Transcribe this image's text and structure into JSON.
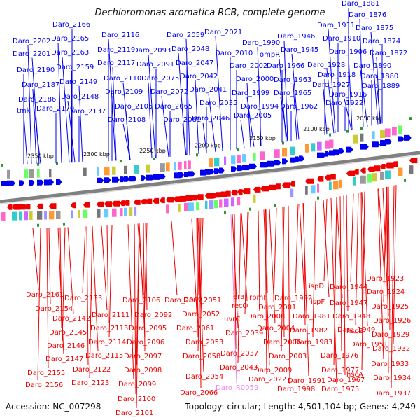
{
  "title": "Dechloromonas aromatica RCB, complete genome",
  "footer": {
    "accession": "Accession: NC_007298",
    "summary": "Topology: circular; Length: 4,501,104 bp; Genes: 4,249"
  },
  "colors": {
    "forward": "#0000ee",
    "reverse": "#ee0000",
    "rna": "#ee88ee",
    "backbone": "#888888",
    "marker": "#2a9a2a"
  },
  "ticks": [
    "2350 kbp",
    "2300 kbp",
    "2250 kbp",
    "2200 kbp",
    "2150 kbp",
    "2100 kbp",
    "2050 kbp"
  ],
  "top_labels": [
    "Daro_1881",
    "Daro_1876",
    "Daro_1875",
    "Daro_1874",
    "Daro_1872",
    "Daro_1911",
    "Daro_1910",
    "Daro_1906",
    "Daro_1890",
    "Daro_1880",
    "Daro_1889",
    "Daro_1928",
    "Daro_1918",
    "Daro_1927",
    "Daro_1916",
    "Daro_1922",
    "Daro_1946",
    "Daro_1945",
    "Daro_1966",
    "Daro_1963",
    "Daro_1965",
    "Daro_1962",
    "Daro_1990",
    "ompR",
    "Daro_2002",
    "Daro_2000",
    "Daro_1999",
    "Daro_1994",
    "Daro_2005",
    "Daro_2021",
    "Daro_2010",
    "Daro_2059",
    "Daro_2048",
    "Daro_2047",
    "Daro_2042",
    "Daro_2041",
    "Daro_2035",
    "Daro_2046",
    "Daro_2093",
    "Daro_2091",
    "Daro_2075",
    "Daro_2072",
    "Daro_2065",
    "Daro_2081",
    "Daro_2116",
    "Daro_2119",
    "Daro_2117",
    "Daro_2110",
    "Daro_2109",
    "Daro_2105",
    "Daro_2108",
    "Daro_2166",
    "Daro_2165",
    "Daro_2163",
    "Daro_2159",
    "Daro_2149",
    "Daro_2148",
    "Daro_2137",
    "Daro_2202",
    "Daro_2201",
    "Daro_2190",
    "Daro_2187",
    "Daro_2186",
    "Daro_2170",
    "tmk"
  ],
  "bottom_labels": [
    "Daro_2161",
    "Daro_2154",
    "Daro_2133",
    "Daro_2142",
    "Daro_2145",
    "Daro_2146",
    "Daro_2147",
    "Daro_2155",
    "Daro_2156",
    "Daro_2111",
    "Daro_2113",
    "Daro_2114",
    "Daro_2115",
    "Daro_2122",
    "Daro_2123",
    "Daro_2106",
    "Daro_2092",
    "Daro_2095",
    "Daro_2096",
    "Daro_2097",
    "Daro_2098",
    "Daro_2099",
    "Daro_2100",
    "Daro_2101",
    "Daro_2082",
    "Daro_2051",
    "Daro_2052",
    "Daro_2061",
    "Daro_2053",
    "Daro_2058",
    "Daro_2054",
    "Daro_2066",
    "era",
    "recO",
    "rpmF",
    "uvrC",
    "Daro_2039",
    "Daro_2037",
    "Daro_2043",
    "Daro_R0059",
    "Daro_2008",
    "Daro_2001",
    "Daro_2004",
    "Daro_2006",
    "Daro_2003",
    "Daro_2009",
    "Daro_2022",
    "Daro_1992",
    "Daro_1981",
    "Daro_1982",
    "Daro_1983",
    "Daro_1991",
    "Daro_1998",
    "ispD",
    "ispF",
    "Daro_1976",
    "Daro_1977",
    "Daro_1975",
    "Daro_1967",
    "Daro_1944",
    "Daro_1947",
    "Daro_1948",
    "Daro_1949",
    "hscB",
    "Daro_1951",
    "hscA",
    "Daro_1923",
    "Daro_1924",
    "Daro_1925",
    "Daro_1926",
    "Daro_1929",
    "Daro_1932",
    "Daro_1933",
    "Daro_1934",
    "Daro_1937"
  ]
}
